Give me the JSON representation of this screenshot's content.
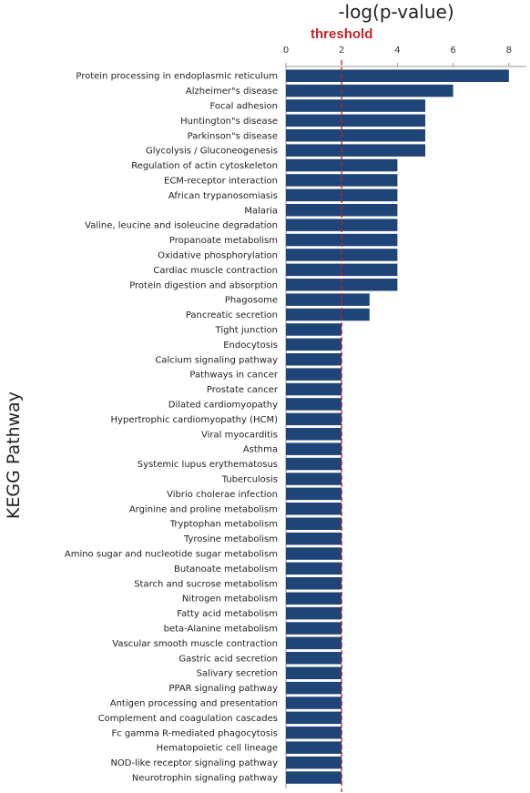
{
  "chart_data": {
    "type": "bar",
    "orientation": "horizontal",
    "xlabel": "-log(p-value)",
    "ylabel": "KEGG Pathway",
    "xlim": [
      0,
      8.5
    ],
    "xticks": [
      0,
      2,
      4,
      6,
      8
    ],
    "threshold": {
      "label": "threshold",
      "value": 2,
      "color": "#c0242b"
    },
    "bar_color": "#1f4477",
    "grid": false,
    "categories": [
      "Protein processing in endoplasmic reticulum",
      "Alzheimer\"s disease",
      "Focal adhesion",
      "Huntington\"s disease",
      "Parkinson\"s disease",
      "Glycolysis / Gluconeogenesis",
      "Regulation of actin cytoskeleton",
      "ECM-receptor interaction",
      "African trypanosomiasis",
      "Malaria",
      "Valine, leucine and isoleucine degradation",
      "Propanoate metabolism",
      "Oxidative phosphorylation",
      "Cardiac muscle contraction",
      "Protein digestion and absorption",
      "Phagosome",
      "Pancreatic secretion",
      "Tight junction",
      "Endocytosis",
      "Calcium signaling pathway",
      "Pathways in cancer",
      "Prostate cancer",
      "Dilated cardiomyopathy",
      "Hypertrophic cardiomyopathy (HCM)",
      "Viral myocarditis",
      "Asthma",
      "Systemic lupus erythematosus",
      "Tuberculosis",
      "Vibrio cholerae infection",
      "Arginine and proline metabolism",
      "Tryptophan metabolism",
      "Tyrosine metabolism",
      "Amino sugar and nucleotide sugar metabolism",
      "Butanoate metabolism",
      "Starch and sucrose metabolism",
      "Nitrogen metabolism",
      "Fatty acid metabolism",
      "beta-Alanine metabolism",
      "Vascular smooth muscle contraction",
      "Gastric acid secretion",
      "Salivary secretion",
      "PPAR signaling pathway",
      "Antigen processing and presentation",
      "Complement and coagulation cascades",
      "Fc gamma R-mediated phagocytosis",
      "Hematopoietic cell lineage",
      "NOD-like receptor signaling pathway",
      "Neurotrophin signaling pathway"
    ],
    "values": [
      8,
      6,
      5,
      5,
      5,
      5,
      4,
      4,
      4,
      4,
      4,
      4,
      4,
      4,
      4,
      3,
      3,
      2,
      2,
      2,
      2,
      2,
      2,
      2,
      2,
      2,
      2,
      2,
      2,
      2,
      2,
      2,
      2,
      2,
      2,
      2,
      2,
      2,
      2,
      2,
      2,
      2,
      2,
      2,
      2,
      2,
      2,
      2
    ]
  }
}
